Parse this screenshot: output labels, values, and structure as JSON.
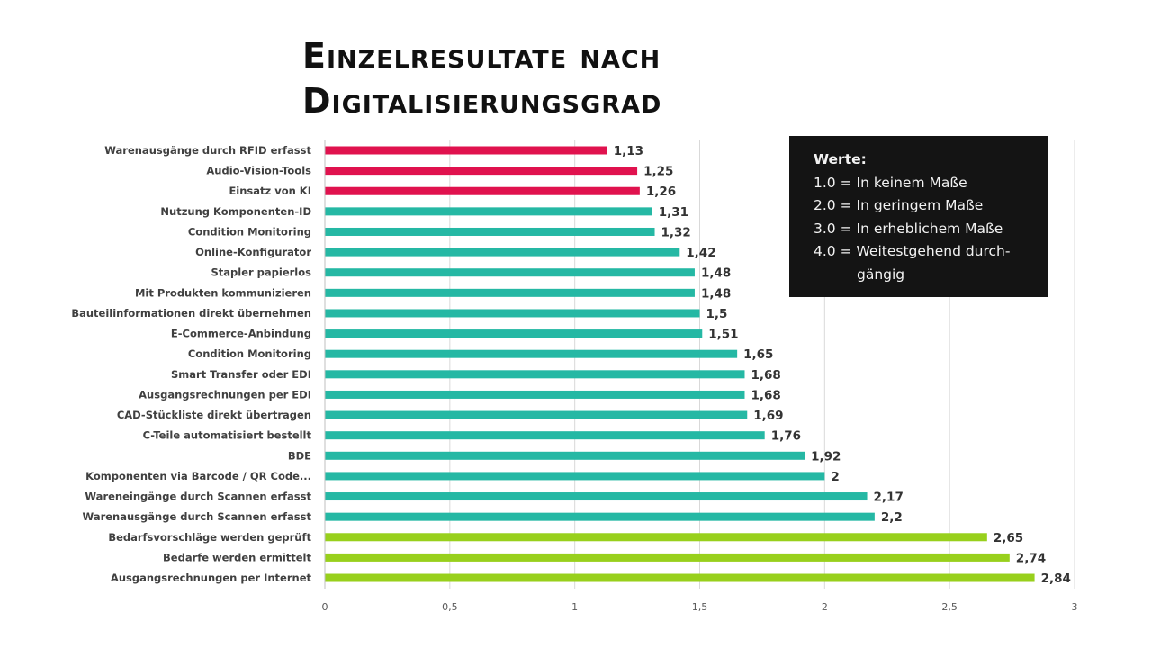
{
  "title_lines": [
    "Einzelresultate nach",
    "Digitalisierungsgrad"
  ],
  "legend_box": {
    "heading": "Werte:",
    "items": [
      {
        "text": "1.0 = In keinem Maße",
        "cont": ""
      },
      {
        "text": "2.0 = In geringem Maße",
        "cont": ""
      },
      {
        "text": "3.0 = In erheblichem Maße",
        "cont": ""
      },
      {
        "text": "4.0 = Weitestgehend  durch-",
        "cont": "gängig"
      }
    ]
  },
  "colors": {
    "red": "#e0124e",
    "teal": "#25b8a4",
    "green": "#98d01c",
    "grid": "#d9d9d9",
    "label": "#404040",
    "value": "#333333"
  },
  "chart_data": {
    "type": "bar",
    "orientation": "horizontal",
    "xlim": [
      0,
      3
    ],
    "xticks": [
      0,
      0.5,
      1,
      1.5,
      2,
      2.5,
      3
    ],
    "xtick_labels": [
      "0",
      "0,5",
      "1",
      "1,5",
      "2",
      "2,5",
      "3"
    ],
    "grid": "vertical",
    "categories": [
      "Warenausgänge durch RFID erfasst",
      "Audio-Vision-Tools",
      "Einsatz von KI",
      "Nutzung Komponenten-ID",
      "Condition Monitoring",
      "Online-Konfigurator",
      "Stapler papierlos",
      "Mit Produkten kommunizieren",
      "Bauteilinformationen direkt übernehmen",
      "E-Commerce-Anbindung",
      "Condition Monitoring",
      "Smart Transfer oder EDI",
      "Ausgangsrechnungen per EDI",
      "CAD-Stückliste direkt übertragen",
      "C-Teile automatisiert bestellt",
      "BDE",
      "Komponenten via Barcode / QR Code...",
      "Wareneingänge durch Scannen erfasst",
      "Warenausgänge durch Scannen erfasst",
      "Bedarfsvorschläge werden geprüft",
      "Bedarfe werden ermittelt",
      "Ausgangsrechnungen per Internet"
    ],
    "values": [
      1.13,
      1.25,
      1.26,
      1.31,
      1.32,
      1.42,
      1.48,
      1.48,
      1.5,
      1.51,
      1.65,
      1.68,
      1.68,
      1.69,
      1.76,
      1.92,
      2,
      2.17,
      2.2,
      2.65,
      2.74,
      2.84
    ],
    "value_labels": [
      "1,13",
      "1,25",
      "1,26",
      "1,31",
      "1,32",
      "1,42",
      "1,48",
      "1,48",
      "1,5",
      "1,51",
      "1,65",
      "1,68",
      "1,68",
      "1,69",
      "1,76",
      "1,92",
      "2",
      "2,17",
      "2,2",
      "2,65",
      "2,74",
      "2,84"
    ],
    "bar_colors": [
      "red",
      "red",
      "red",
      "teal",
      "teal",
      "teal",
      "teal",
      "teal",
      "teal",
      "teal",
      "teal",
      "teal",
      "teal",
      "teal",
      "teal",
      "teal",
      "teal",
      "teal",
      "teal",
      "green",
      "green",
      "green"
    ]
  }
}
